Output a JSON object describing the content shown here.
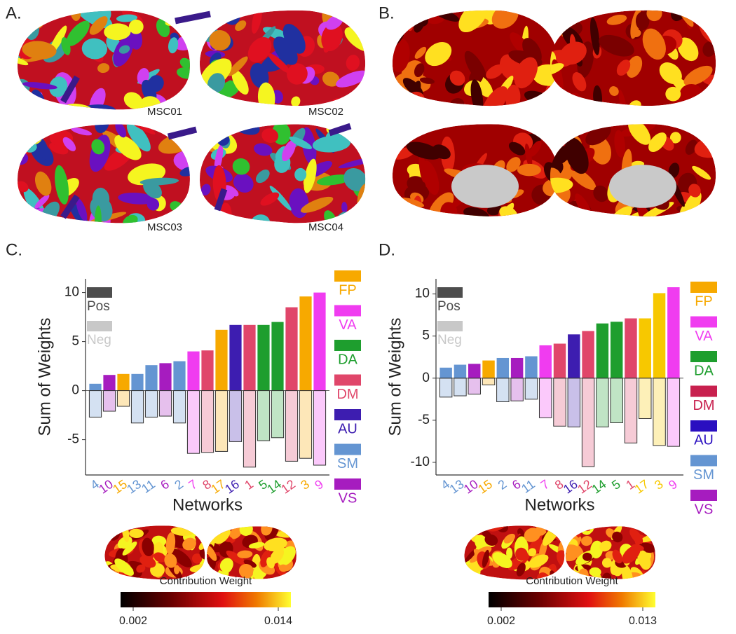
{
  "panel_labels": [
    "A.",
    "B.",
    "C.",
    "D."
  ],
  "brain_labels": [
    "MSC01",
    "MSC02",
    "MSC03",
    "MSC04"
  ],
  "chart_data": [
    {
      "type": "bar",
      "x_label": "Networks",
      "y_label": "Sum of Weights",
      "categories": [
        "4",
        "10",
        "15",
        "13",
        "11",
        "6",
        "2",
        "7",
        "8",
        "17",
        "16",
        "1",
        "5",
        "14",
        "12",
        "3",
        "9"
      ],
      "category_colors": [
        "#6495d2",
        "#a61cbf",
        "#f7a900",
        "#6495d2",
        "#6495d2",
        "#a61cbf",
        "#6495d2",
        "#f03cf0",
        "#e0466a",
        "#f7a900",
        "#3d1db0",
        "#e0466a",
        "#1e9e2e",
        "#1e9e2e",
        "#e0466a",
        "#f7a900",
        "#f03cf0"
      ],
      "series": [
        {
          "name": "Pos",
          "color": "#4d4d4d",
          "values": [
            0.7,
            1.6,
            1.7,
            1.7,
            2.6,
            2.8,
            3.0,
            4.0,
            4.1,
            6.2,
            6.7,
            6.7,
            6.7,
            7.0,
            8.5,
            9.6,
            10.0
          ]
        },
        {
          "name": "Neg",
          "color": "#c8c8c8",
          "values": [
            -2.7,
            -2.1,
            -1.6,
            -3.3,
            -2.7,
            -2.6,
            -3.3,
            -6.4,
            -6.3,
            -6.2,
            -5.2,
            -7.8,
            -5.1,
            -4.8,
            -7.2,
            -6.9,
            -7.6
          ]
        }
      ],
      "ylim": [
        -8.6,
        11.4
      ],
      "yticks": [
        -5,
        0,
        5,
        10
      ],
      "networks": [
        {
          "name": "FP",
          "color": "#f7a900"
        },
        {
          "name": "VA",
          "color": "#f03cf0"
        },
        {
          "name": "DA",
          "color": "#1e9e2e"
        },
        {
          "name": "DM",
          "color": "#e0466a"
        },
        {
          "name": "AU",
          "color": "#3d1db0"
        },
        {
          "name": "SM",
          "color": "#6495d2"
        },
        {
          "name": "VS",
          "color": "#a61cbf"
        }
      ],
      "colorbar": {
        "title": "Contribution Weight",
        "ticks": [
          0.002,
          0.014
        ]
      }
    },
    {
      "type": "bar",
      "x_label": "Networks",
      "y_label": "Sum of Weights",
      "categories": [
        "4",
        "13",
        "10",
        "15",
        "2",
        "6",
        "11",
        "7",
        "8",
        "16",
        "12",
        "14",
        "5",
        "1",
        "17",
        "3",
        "9"
      ],
      "category_colors": [
        "#6495d2",
        "#6495d2",
        "#a61cbf",
        "#f7a900",
        "#6495d2",
        "#a61cbf",
        "#6495d2",
        "#f03cf0",
        "#e0466a",
        "#3d1db0",
        "#e0466a",
        "#1e9e2e",
        "#1e9e2e",
        "#e0466a",
        "#f7c800",
        "#f7c800",
        "#f03cf0"
      ],
      "series": [
        {
          "name": "Pos",
          "color": "#4d4d4d",
          "values": [
            1.25,
            1.6,
            1.7,
            2.1,
            2.4,
            2.4,
            2.6,
            3.9,
            4.1,
            5.2,
            5.6,
            6.5,
            6.7,
            7.1,
            7.1,
            10.1,
            10.8
          ]
        },
        {
          "name": "Neg",
          "color": "#c8c8c8",
          "values": [
            -2.25,
            -2.1,
            -1.9,
            -0.8,
            -2.8,
            -2.7,
            -2.5,
            -4.7,
            -5.7,
            -5.8,
            -10.5,
            -5.8,
            -5.3,
            -7.7,
            -4.8,
            -8.0,
            -8.1
          ]
        }
      ],
      "ylim": [
        -11.5,
        11.8
      ],
      "yticks": [
        -10,
        -5,
        0,
        5,
        10
      ],
      "networks": [
        {
          "name": "FP",
          "color": "#f7a900"
        },
        {
          "name": "VA",
          "color": "#f03cf0"
        },
        {
          "name": "DA",
          "color": "#1e9e2e"
        },
        {
          "name": "DM",
          "color": "#c8204e"
        },
        {
          "name": "AU",
          "color": "#2a0fc0"
        },
        {
          "name": "SM",
          "color": "#6495d2"
        },
        {
          "name": "VS",
          "color": "#a61cbf"
        }
      ],
      "colorbar": {
        "title": "Contribution Weight",
        "ticks": [
          0.002,
          0.013
        ]
      }
    }
  ]
}
